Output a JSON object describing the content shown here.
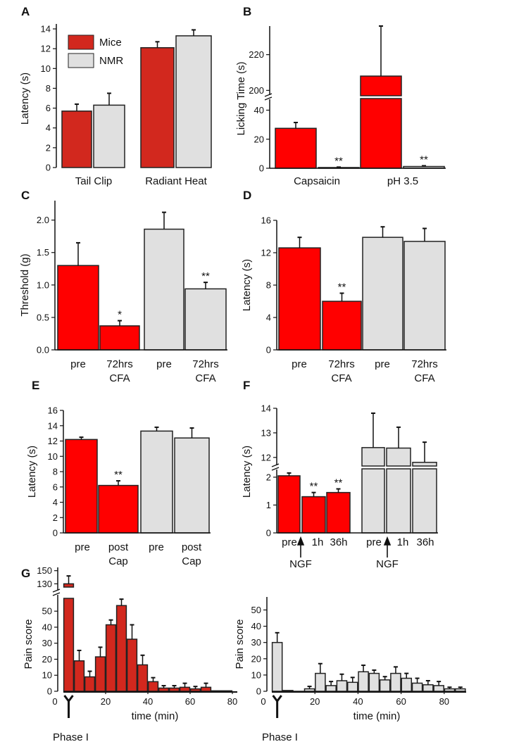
{
  "colors": {
    "mice": "#ff0000",
    "mice_dark": "#d2281e",
    "nmr": "#e0e0e0",
    "stroke": "#222222"
  },
  "chart_data": [
    {
      "id": "A",
      "type": "bar",
      "panel": "A",
      "ylabel": "Latency (s)",
      "ylim": [
        0,
        14.5
      ],
      "yticks": [
        0,
        2,
        4,
        6,
        8,
        10,
        12,
        14
      ],
      "segments": [
        [
          0,
          14.5
        ]
      ],
      "legend": {
        "position": "top-left",
        "entries": [
          {
            "name": "Mice",
            "color": "mice_dark"
          },
          {
            "name": "NMR",
            "color": "nmr"
          }
        ]
      },
      "bars": [
        {
          "series": "Mice",
          "value": 5.7,
          "err": 0.7,
          "color": "mice_dark"
        },
        {
          "series": "NMR",
          "value": 6.3,
          "err": 1.2,
          "color": "nmr"
        },
        {
          "series": "Mice",
          "value": 12.1,
          "err": 0.6,
          "color": "mice_dark"
        },
        {
          "series": "NMR",
          "value": 13.3,
          "err": 0.6,
          "color": "nmr"
        }
      ],
      "xlabels": [
        [
          "Tail Clip"
        ],
        [
          "Radiant Heat"
        ]
      ]
    },
    {
      "id": "B",
      "type": "bar",
      "panel": "B",
      "ylabel": "Licking Time (s)",
      "yticks": [
        0,
        20,
        40,
        200,
        220
      ],
      "segments": [
        [
          0,
          48
        ],
        [
          197,
          236
        ]
      ],
      "bars": [
        {
          "series": "Mice",
          "value": 27.5,
          "err": 4,
          "color": "mice"
        },
        {
          "series": "NMR",
          "value": 0.5,
          "err": 0.3,
          "color": "nmr",
          "sig": "**"
        },
        {
          "series": "Mice",
          "value": 208,
          "err": 28,
          "color": "mice"
        },
        {
          "series": "NMR",
          "value": 1.2,
          "err": 0.5,
          "color": "nmr",
          "sig": "**"
        }
      ],
      "xlabels": [
        [
          "Capsaicin"
        ],
        [
          "pH 3.5"
        ]
      ]
    },
    {
      "id": "C",
      "type": "bar",
      "panel": "C",
      "ylabel": "Threshold (g)",
      "yticks": [
        0,
        0.5,
        1,
        1.5,
        2
      ],
      "tick_format": "0.0",
      "segments": [
        [
          0,
          2.3
        ]
      ],
      "bars": [
        {
          "series": "Mice",
          "value": 1.3,
          "err": 0.35,
          "color": "mice"
        },
        {
          "series": "Mice",
          "value": 0.37,
          "err": 0.08,
          "color": "mice",
          "sig": "*"
        },
        {
          "series": "NMR",
          "value": 1.86,
          "err": 0.26,
          "color": "nmr"
        },
        {
          "series": "NMR",
          "value": 0.94,
          "err": 0.1,
          "color": "nmr",
          "sig": "**"
        }
      ],
      "xlabels": [
        [
          "pre"
        ],
        [
          "72hrs",
          "CFA"
        ],
        [
          "pre"
        ],
        [
          "72hrs",
          "CFA"
        ]
      ]
    },
    {
      "id": "D",
      "type": "bar",
      "panel": "D",
      "ylabel": "Latency (s)",
      "yticks": [
        0,
        4,
        8,
        12,
        16
      ],
      "segments": [
        [
          0,
          16
        ]
      ],
      "bars": [
        {
          "series": "Mice",
          "value": 12.6,
          "err": 1.3,
          "color": "mice"
        },
        {
          "series": "Mice",
          "value": 6.0,
          "err": 1.0,
          "color": "mice",
          "sig": "**"
        },
        {
          "series": "NMR",
          "value": 13.9,
          "err": 1.3,
          "color": "nmr"
        },
        {
          "series": "NMR",
          "value": 13.4,
          "err": 1.6,
          "color": "nmr"
        }
      ],
      "xlabels": [
        [
          "pre"
        ],
        [
          "72hrs",
          "CFA"
        ],
        [
          "pre"
        ],
        [
          "72hrs",
          "CFA"
        ]
      ]
    },
    {
      "id": "E",
      "type": "bar",
      "panel": "E",
      "ylabel": "Latency (s)",
      "yticks": [
        0,
        2,
        4,
        6,
        8,
        10,
        12,
        14,
        16
      ],
      "segments": [
        [
          0,
          16
        ]
      ],
      "bars": [
        {
          "series": "Mice",
          "value": 12.2,
          "err": 0.3,
          "color": "mice"
        },
        {
          "series": "Mice",
          "value": 6.2,
          "err": 0.6,
          "color": "mice",
          "sig": "**"
        },
        {
          "series": "NMR",
          "value": 13.3,
          "err": 0.5,
          "color": "nmr"
        },
        {
          "series": "NMR",
          "value": 12.4,
          "err": 1.3,
          "color": "nmr"
        }
      ],
      "xlabels": [
        [
          "pre"
        ],
        [
          "post",
          "Cap"
        ],
        [
          "pre"
        ],
        [
          "post",
          "Cap"
        ]
      ]
    },
    {
      "id": "F",
      "type": "bar",
      "panel": "F",
      "ylabel": "Latency (s)",
      "yticks": [
        0,
        1,
        2,
        12,
        13,
        14
      ],
      "segments": [
        [
          0,
          2.3
        ],
        [
          11.65,
          14
        ]
      ],
      "bars": [
        {
          "series": "Mice",
          "value": 2.05,
          "err": 0.1,
          "color": "mice"
        },
        {
          "series": "Mice",
          "value": 1.3,
          "err": 0.15,
          "color": "mice",
          "sig": "**"
        },
        {
          "series": "Mice",
          "value": 1.45,
          "err": 0.13,
          "color": "mice",
          "sig": "**"
        },
        {
          "series": "NMR",
          "value": 12.4,
          "err": 1.4,
          "color": "nmr"
        },
        {
          "series": "NMR",
          "value": 12.38,
          "err": 0.85,
          "color": "nmr"
        },
        {
          "series": "NMR",
          "value": 11.8,
          "err": 0.82,
          "color": "nmr"
        }
      ],
      "xlabels": [
        [
          "pre"
        ],
        [
          "1h"
        ],
        [
          "36h"
        ],
        [
          "pre"
        ],
        [
          "1h"
        ],
        [
          "36h"
        ]
      ],
      "annotations": [
        "NGF",
        "NGF"
      ]
    },
    {
      "id": "G1",
      "type": "bar",
      "panel": "G",
      "series": "Mice",
      "ylabel": "Pain score",
      "xlabel": "time (min)",
      "xlim": [
        0,
        85
      ],
      "xticks": [
        0,
        20,
        40,
        60,
        80
      ],
      "yticks": [
        0,
        10,
        20,
        30,
        40,
        50,
        130,
        150
      ],
      "segments": [
        [
          0,
          58
        ],
        [
          125,
          155
        ]
      ],
      "color": "mice_dark",
      "x": [
        2.5,
        7.5,
        12.5,
        17.5,
        22.5,
        27.5,
        32.5,
        37.5,
        42.5,
        47.5,
        52.5,
        57.5,
        62.5,
        67.5,
        72.5,
        77.5
      ],
      "values": [
        130,
        19,
        9,
        21.5,
        41.5,
        53.5,
        32.5,
        16.5,
        6,
        2,
        2,
        2.5,
        1.5,
        2.5,
        0.3,
        0.3
      ],
      "errors": [
        12,
        6.5,
        3.5,
        6,
        3,
        4,
        9,
        6,
        2.5,
        1.5,
        1.5,
        2.5,
        1.5,
        2.5,
        0,
        0
      ],
      "annotation": "Phase I"
    },
    {
      "id": "G2",
      "type": "bar",
      "panel": "G",
      "series": "NMR",
      "ylabel": "Pain score",
      "xlabel": "time (min)",
      "xlim": [
        0,
        90
      ],
      "xticks": [
        0,
        20,
        40,
        60,
        80
      ],
      "yticks": [
        0,
        10,
        20,
        30,
        40,
        50
      ],
      "segments": [
        [
          0,
          58
        ]
      ],
      "color": "nmr",
      "x": [
        2.5,
        7.5,
        12.5,
        17.5,
        22.5,
        27.5,
        32.5,
        37.5,
        42.5,
        47.5,
        52.5,
        57.5,
        62.5,
        67.5,
        72.5,
        77.5,
        82.5,
        87.5
      ],
      "values": [
        30,
        0.5,
        0,
        1.5,
        11,
        3.5,
        6.5,
        5.5,
        12,
        11,
        7,
        11,
        8,
        5,
        4,
        3.5,
        1.5,
        1.5
      ],
      "errors": [
        6,
        0,
        0,
        1.5,
        6,
        2.5,
        4,
        3,
        4,
        2,
        2,
        4,
        3,
        3,
        2.5,
        2.5,
        1,
        1
      ],
      "annotation": "Phase I"
    }
  ]
}
